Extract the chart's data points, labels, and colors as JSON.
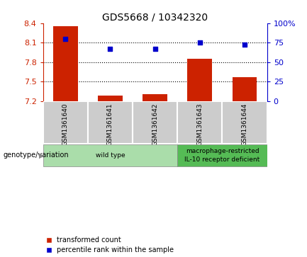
{
  "title": "GDS5668 / 10342320",
  "samples": [
    "GSM1361640",
    "GSM1361641",
    "GSM1361642",
    "GSM1361643",
    "GSM1361644"
  ],
  "transformed_count": [
    8.35,
    7.28,
    7.3,
    7.85,
    7.57
  ],
  "percentile_rank": [
    80,
    67,
    67,
    75,
    72
  ],
  "ylim_left": [
    7.2,
    8.4
  ],
  "ylim_right": [
    0,
    100
  ],
  "yticks_left": [
    7.2,
    7.5,
    7.8,
    8.1,
    8.4
  ],
  "yticks_right": [
    0,
    25,
    50,
    75,
    100
  ],
  "bar_color": "#cc2200",
  "dot_color": "#0000cc",
  "background_plot": "#ffffff",
  "sample_bg": "#cccccc",
  "group_wt_color": "#aaddaa",
  "group_mac_color": "#55bb55",
  "groups": [
    {
      "label": "wild type",
      "start": 0,
      "end": 2,
      "color_key": "group_wt_color"
    },
    {
      "label": "macrophage-restricted\nIL-10 receptor deficient",
      "start": 3,
      "end": 4,
      "color_key": "group_mac_color"
    }
  ],
  "legend_bar_label": "transformed count",
  "legend_dot_label": "percentile rank within the sample",
  "genotype_label": "genotype/variation"
}
